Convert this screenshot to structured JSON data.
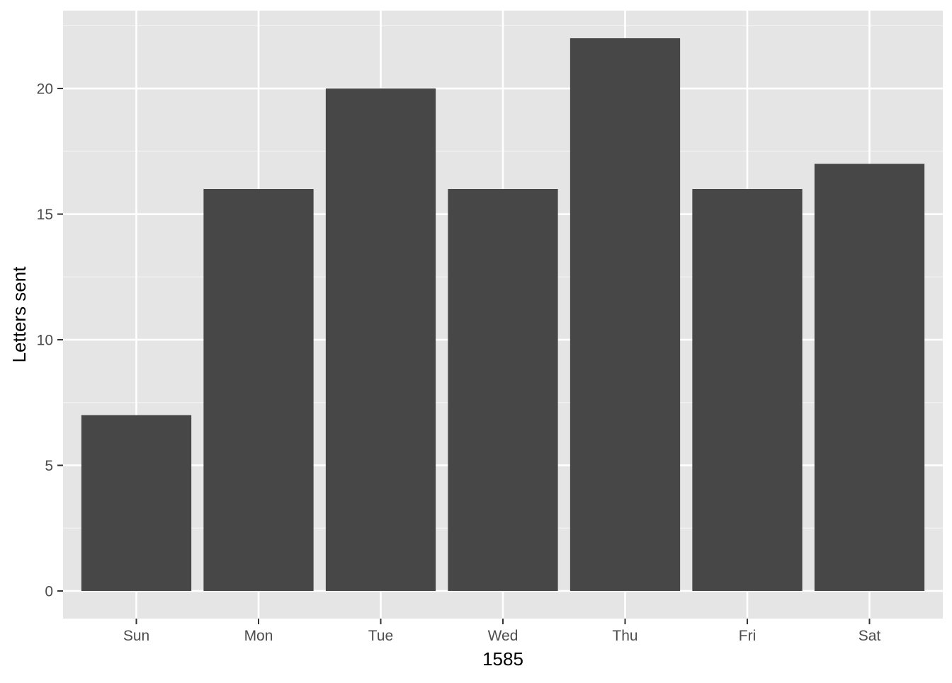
{
  "chart_data": {
    "type": "bar",
    "title": "",
    "xlabel": "1585",
    "ylabel": "Letters sent",
    "categories": [
      "Sun",
      "Mon",
      "Tue",
      "Wed",
      "Thu",
      "Fri",
      "Sat"
    ],
    "values": [
      7,
      16,
      20,
      16,
      22,
      16,
      17
    ],
    "ylim": [
      -1.1,
      23.1
    ],
    "y_ticks": [
      "0",
      "5",
      "10",
      "15",
      "20"
    ],
    "grid": true,
    "legend": "none",
    "colors": {
      "panel_background": "#e5e5e5",
      "grid_major": "#ffffff",
      "grid_minor": "#f2f2f2",
      "bar_fill": "#474747",
      "tick_text": "#4d4d4d",
      "axis_ticks": "#333333"
    }
  }
}
